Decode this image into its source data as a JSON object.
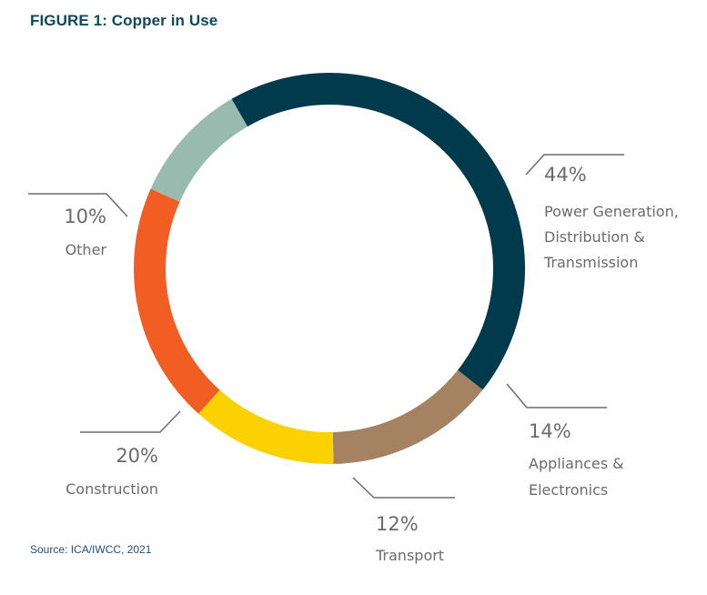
{
  "figure": {
    "title": "FIGURE 1: Copper in Use",
    "source": "Source: ICA/IWCC, 2021"
  },
  "chart_data": {
    "type": "pie",
    "donut": true,
    "title": "FIGURE 1: Copper in Use",
    "slices": [
      {
        "name": "Power Generation, Distribution & Transmission",
        "value": 44,
        "label": "44%",
        "text_lines": [
          "Power Generation,",
          "Distribution &",
          "Transmission"
        ],
        "color": "#023a4d"
      },
      {
        "name": "Appliances & Electronics",
        "value": 14,
        "label": "14%",
        "text_lines": [
          "Appliances &",
          "Electronics"
        ],
        "color": "#a58362"
      },
      {
        "name": "Transport",
        "value": 12,
        "label": "12%",
        "text_lines": [
          "Transport"
        ],
        "color": "#fcd102"
      },
      {
        "name": "Construction",
        "value": 20,
        "label": "20%",
        "text_lines": [
          "Construction"
        ],
        "color": "#f15d22"
      },
      {
        "name": "Other",
        "value": 10,
        "label": "10%",
        "text_lines": [
          "Other"
        ],
        "color": "#99bbaf"
      }
    ],
    "source": "Source: ICA/IWCC, 2021"
  }
}
